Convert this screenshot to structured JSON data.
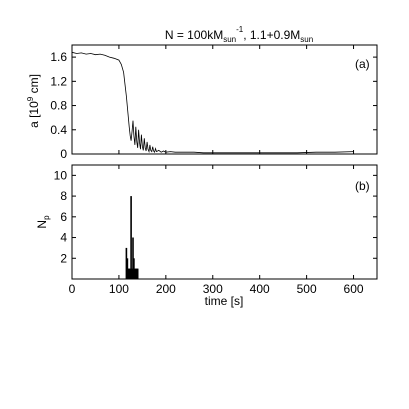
{
  "chart_data": [
    {
      "type": "line",
      "panel_label": "(a)",
      "title": {
        "part1": "N = 100kM",
        "sub1": "sun",
        "sup1": "-1",
        "part2": ", 1.1+0.9M",
        "sub2": "sun"
      },
      "ylabel": {
        "main": "a [10",
        "sup": "9",
        "tail": " cm]"
      },
      "xlim": [
        0,
        650
      ],
      "ylim": [
        0,
        1.8
      ],
      "yticks": [
        0,
        0.4,
        0.8,
        1.2,
        1.6
      ],
      "ytick_labels": [
        "0",
        "0.4",
        "0.8",
        "1.2",
        "1.6"
      ],
      "grid": false,
      "series": [
        {
          "x": [
            0,
            10,
            20,
            30,
            40,
            50,
            60,
            70,
            80,
            90,
            100,
            105,
            110,
            113,
            116,
            119,
            122,
            124,
            126,
            128,
            130,
            132,
            134,
            136,
            138,
            140,
            142,
            144,
            146,
            148,
            150,
            152,
            154,
            156,
            158,
            160,
            162,
            164,
            166,
            168,
            170,
            172,
            174,
            176,
            178,
            180,
            185,
            190,
            195,
            200,
            210,
            220,
            240,
            260,
            280,
            300,
            330,
            360,
            400,
            440,
            480,
            520,
            560,
            600
          ],
          "y": [
            1.68,
            1.66,
            1.67,
            1.65,
            1.66,
            1.64,
            1.65,
            1.63,
            1.6,
            1.58,
            1.55,
            1.48,
            1.35,
            1.15,
            0.95,
            0.7,
            0.45,
            0.3,
            0.22,
            0.38,
            0.55,
            0.3,
            0.15,
            0.45,
            0.2,
            0.1,
            0.4,
            0.18,
            0.08,
            0.32,
            0.12,
            0.06,
            0.26,
            0.1,
            0.05,
            0.2,
            0.08,
            0.04,
            0.15,
            0.06,
            0.04,
            0.12,
            0.05,
            0.03,
            0.09,
            0.04,
            0.06,
            0.03,
            0.05,
            0.03,
            0.04,
            0.03,
            0.03,
            0.03,
            0.02,
            0.02,
            0.02,
            0.02,
            0.02,
            0.02,
            0.02,
            0.03,
            0.03,
            0.04
          ]
        }
      ]
    },
    {
      "type": "bar",
      "panel_label": "(b)",
      "ylabel": {
        "main": "N",
        "sub": "p"
      },
      "xlabel": "time [s]",
      "xlim": [
        0,
        650
      ],
      "ylim": [
        0,
        11
      ],
      "xticks": [
        0,
        100,
        200,
        300,
        400,
        500,
        600
      ],
      "xtick_labels": [
        "0",
        "100",
        "200",
        "300",
        "400",
        "500",
        "600"
      ],
      "yticks": [
        2,
        4,
        6,
        8,
        10
      ],
      "ytick_labels": [
        "2",
        "4",
        "6",
        "8",
        "10"
      ],
      "grid": false,
      "x": [
        116,
        118,
        120,
        122,
        124,
        126,
        128,
        130,
        132,
        134,
        136,
        138,
        140
      ],
      "values": [
        3,
        2,
        1,
        1,
        1,
        8,
        1,
        4,
        2,
        1,
        1,
        1,
        1
      ]
    }
  ]
}
